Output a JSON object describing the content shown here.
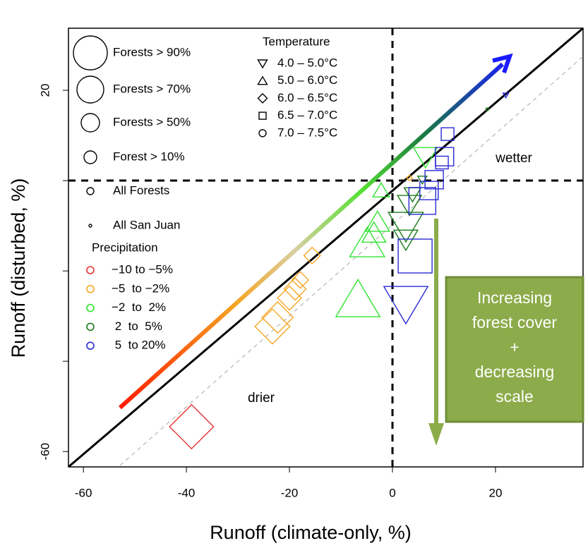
{
  "chart_data": {
    "type": "scatter",
    "x_label": "Runoff (climate-only, %)",
    "y_label": "Runoff (disturbed, %)",
    "xlim": [
      -62.9,
      37
    ],
    "ylim": [
      -63.4,
      33.75
    ],
    "xticks": [
      -60,
      -40,
      -20,
      0,
      20
    ],
    "yticks": [
      -60,
      {
        "value": -40,
        "label": null
      },
      {
        "value": -20,
        "label": null
      },
      {
        "value": 0,
        "label": null
      },
      20
    ],
    "size_legend": {
      "items": [
        {
          "label": "Forests > 90%",
          "size": 24
        },
        {
          "label": "Forests > 70%",
          "size": 19
        },
        {
          "label": "Forests > 50%",
          "size": 13
        },
        {
          "label": "Forest > 10%",
          "size": 9
        },
        {
          "label": "All Forests",
          "size": 5
        },
        {
          "label": "All San Juan",
          "size": 2
        }
      ]
    },
    "temperature_legend": {
      "title": "Temperature",
      "items": [
        {
          "label": "4.0 – 5.0°C",
          "shape": "triangle-down"
        },
        {
          "label": "5.0 – 6.0°C",
          "shape": "triangle-up"
        },
        {
          "label": "6.0 – 6.5°C",
          "shape": "diamond"
        },
        {
          "label": "6.5 – 7.0°C",
          "shape": "square"
        },
        {
          "label": "7.0 – 7.5°C",
          "shape": "circle"
        }
      ]
    },
    "precipitation_title": "Precipitation",
    "annotations": {
      "wetter": "wetter",
      "drier": "drier",
      "box": [
        "Increasing",
        "forest cover",
        "+",
        "decreasing",
        "scale"
      ]
    },
    "series": [
      {
        "name": "−10 to −5%",
        "color": "#e83030",
        "points": [
          {
            "x": -39,
            "y": -54.5,
            "size": 24,
            "shape": "diamond"
          }
        ]
      },
      {
        "name": "−5  to −2%",
        "color": "#f5a623",
        "points": [
          {
            "x": -15.6,
            "y": -16.6,
            "size": 9,
            "shape": "diamond"
          },
          {
            "x": -17.9,
            "y": -22,
            "size": 9,
            "shape": "diamond"
          },
          {
            "x": -18.9,
            "y": -24,
            "size": 12,
            "shape": "diamond"
          },
          {
            "x": -20,
            "y": -26,
            "size": 13,
            "shape": "diamond"
          },
          {
            "x": -22.3,
            "y": -30.3,
            "size": 17,
            "shape": "diamond"
          },
          {
            "x": -23.3,
            "y": -32.3,
            "size": 19,
            "shape": "diamond"
          },
          {
            "x": 3.3,
            "y": 0.6,
            "size": 3,
            "shape": "diamond"
          }
        ]
      },
      {
        "name": "−2  to  2%",
        "color": "#33e533",
        "points": [
          {
            "x": -6.7,
            "y": -26.4,
            "size": 24,
            "shape": "triangle-up"
          },
          {
            "x": -4.9,
            "y": -13.9,
            "size": 19,
            "shape": "triangle-up"
          },
          {
            "x": -3.6,
            "y": -11.6,
            "size": 13,
            "shape": "triangle-up"
          },
          {
            "x": -2.9,
            "y": -9.2,
            "size": 13,
            "shape": "triangle-up"
          },
          {
            "x": -2.2,
            "y": -2.2,
            "size": 9,
            "shape": "triangle-up"
          },
          {
            "x": 6.4,
            "y": 5.3,
            "size": 13,
            "shape": "triangle-down"
          }
        ]
      },
      {
        "name": " 2  to  5%",
        "color": "#1a7a1a",
        "points": [
          {
            "x": 2.6,
            "y": -10,
            "size": 19,
            "shape": "triangle-down"
          },
          {
            "x": 2.6,
            "y": -13,
            "size": 13,
            "shape": "triangle-down"
          },
          {
            "x": 3.3,
            "y": -5.3,
            "size": 13,
            "shape": "triangle-down"
          },
          {
            "x": 3.9,
            "y": -3,
            "size": 9,
            "shape": "triangle-down"
          },
          {
            "x": 5.8,
            "y": 0.2,
            "size": 5,
            "shape": "triangle-down"
          },
          {
            "x": 18.4,
            "y": 15.8,
            "size": 2,
            "shape": "circle"
          }
        ]
      },
      {
        "name": " 5  to 20%",
        "color": "#2a2ad5",
        "points": [
          {
            "x": 2.6,
            "y": -27.2,
            "size": 24,
            "shape": "triangle-down"
          },
          {
            "x": 4.4,
            "y": -16.7,
            "size": 24,
            "shape": "square"
          },
          {
            "x": 5.8,
            "y": -4.5,
            "size": 19,
            "shape": "square"
          },
          {
            "x": 7.1,
            "y": -2.2,
            "size": 13,
            "shape": "square"
          },
          {
            "x": 8.1,
            "y": 0.2,
            "size": 13,
            "shape": "square"
          },
          {
            "x": 9.6,
            "y": 4,
            "size": 9,
            "shape": "square"
          },
          {
            "x": 10.1,
            "y": 5.3,
            "size": 13,
            "shape": "square"
          },
          {
            "x": 10.7,
            "y": 10.3,
            "size": 9,
            "shape": "square"
          },
          {
            "x": 22,
            "y": 18.9,
            "size": 3,
            "shape": "triangle-down"
          }
        ]
      }
    ]
  }
}
